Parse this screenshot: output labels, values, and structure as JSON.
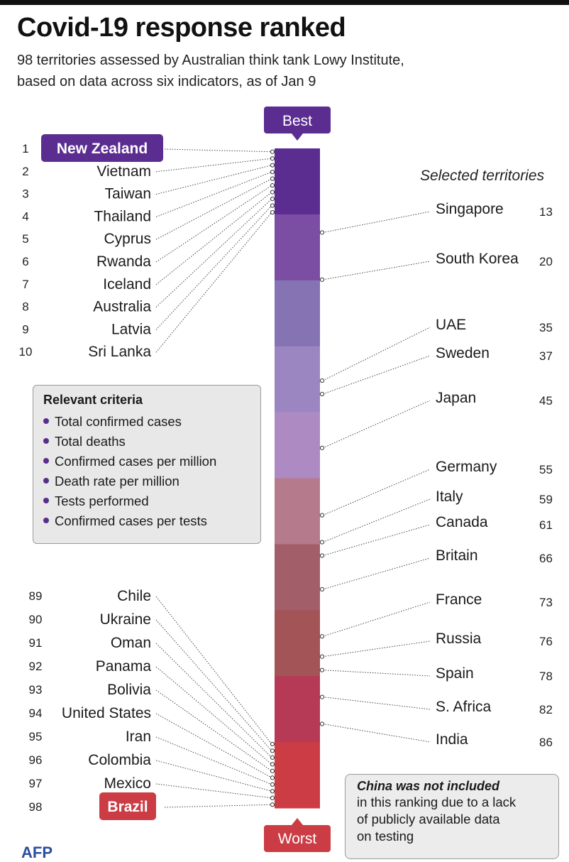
{
  "title": "Covid-19 response ranked",
  "subtitle_lines": [
    "98 territories assessed by Australian think tank Lowy Institute,",
    "based on data across six indicators, as of Jan 9"
  ],
  "selected_title": "Selected territories",
  "criteria": {
    "title": "Relevant criteria",
    "items": [
      "Total confirmed cases",
      "Total deaths",
      "Confirmed cases per million",
      "Death rate per million",
      "Tests performed",
      "Confirmed cases per tests"
    ]
  },
  "note": {
    "title": "China was not included",
    "lines": [
      "in this ranking due to a lack",
      "of publicly available data",
      "on testing"
    ]
  },
  "logo_text": "AFP",
  "chart_data": {
    "type": "ranking",
    "title": "Covid-19 response ranked",
    "total": 98,
    "best_label": "Best",
    "worst_label": "Worst",
    "scale_colors": [
      "#5c2d91",
      "#7b4ea3",
      "#8673b3",
      "#9c86c1",
      "#ae8ac2",
      "#b67a8d",
      "#a25f6a",
      "#a35456",
      "#b63a55",
      "#cc3c44"
    ],
    "highlight_top_color": "#5c2d91",
    "highlight_bottom_color": "#cc3c44",
    "top": [
      {
        "rank": 1,
        "name": "New Zealand"
      },
      {
        "rank": 2,
        "name": "Vietnam"
      },
      {
        "rank": 3,
        "name": "Taiwan"
      },
      {
        "rank": 4,
        "name": "Thailand"
      },
      {
        "rank": 5,
        "name": "Cyprus"
      },
      {
        "rank": 6,
        "name": "Rwanda"
      },
      {
        "rank": 7,
        "name": "Iceland"
      },
      {
        "rank": 8,
        "name": "Australia"
      },
      {
        "rank": 9,
        "name": "Latvia"
      },
      {
        "rank": 10,
        "name": "Sri Lanka"
      }
    ],
    "bottom": [
      {
        "rank": 89,
        "name": "Chile"
      },
      {
        "rank": 90,
        "name": "Ukraine"
      },
      {
        "rank": 91,
        "name": "Oman"
      },
      {
        "rank": 92,
        "name": "Panama"
      },
      {
        "rank": 93,
        "name": "Bolivia"
      },
      {
        "rank": 94,
        "name": "United States"
      },
      {
        "rank": 95,
        "name": "Iran"
      },
      {
        "rank": 96,
        "name": "Colombia"
      },
      {
        "rank": 97,
        "name": "Mexico"
      },
      {
        "rank": 98,
        "name": "Brazil"
      }
    ],
    "selected": [
      {
        "rank": 13,
        "name": "Singapore"
      },
      {
        "rank": 20,
        "name": "South Korea"
      },
      {
        "rank": 35,
        "name": "UAE"
      },
      {
        "rank": 37,
        "name": "Sweden"
      },
      {
        "rank": 45,
        "name": "Japan"
      },
      {
        "rank": 55,
        "name": "Germany"
      },
      {
        "rank": 59,
        "name": "Italy"
      },
      {
        "rank": 61,
        "name": "Canada"
      },
      {
        "rank": 66,
        "name": "Britain"
      },
      {
        "rank": 73,
        "name": "France"
      },
      {
        "rank": 76,
        "name": "Russia"
      },
      {
        "rank": 78,
        "name": "Spain"
      },
      {
        "rank": 82,
        "name": "S. Africa"
      },
      {
        "rank": 86,
        "name": "India"
      }
    ]
  }
}
